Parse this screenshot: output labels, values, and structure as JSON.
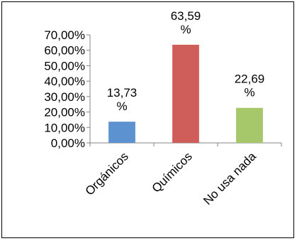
{
  "chart_data": {
    "type": "bar",
    "categories": [
      "Orgánicos",
      "Químicos",
      "No usa nada"
    ],
    "values": [
      13.73,
      63.59,
      22.69
    ],
    "data_labels": [
      [
        "13,73",
        "%"
      ],
      [
        "63,59",
        "%"
      ],
      [
        "22,69",
        "%"
      ]
    ],
    "colors": [
      "#5b92cf",
      "#cf5e5b",
      "#a6c86a"
    ],
    "ylim": [
      0,
      70
    ],
    "yticks": [
      0,
      10,
      20,
      30,
      40,
      50,
      60,
      70
    ],
    "ytick_labels": [
      "0,00%",
      "10,00%",
      "20,00%",
      "30,00%",
      "40,00%",
      "50,00%",
      "60,00%",
      "70,00%"
    ],
    "title": "",
    "xlabel": "",
    "ylabel": "",
    "grid": false,
    "legend": false
  }
}
